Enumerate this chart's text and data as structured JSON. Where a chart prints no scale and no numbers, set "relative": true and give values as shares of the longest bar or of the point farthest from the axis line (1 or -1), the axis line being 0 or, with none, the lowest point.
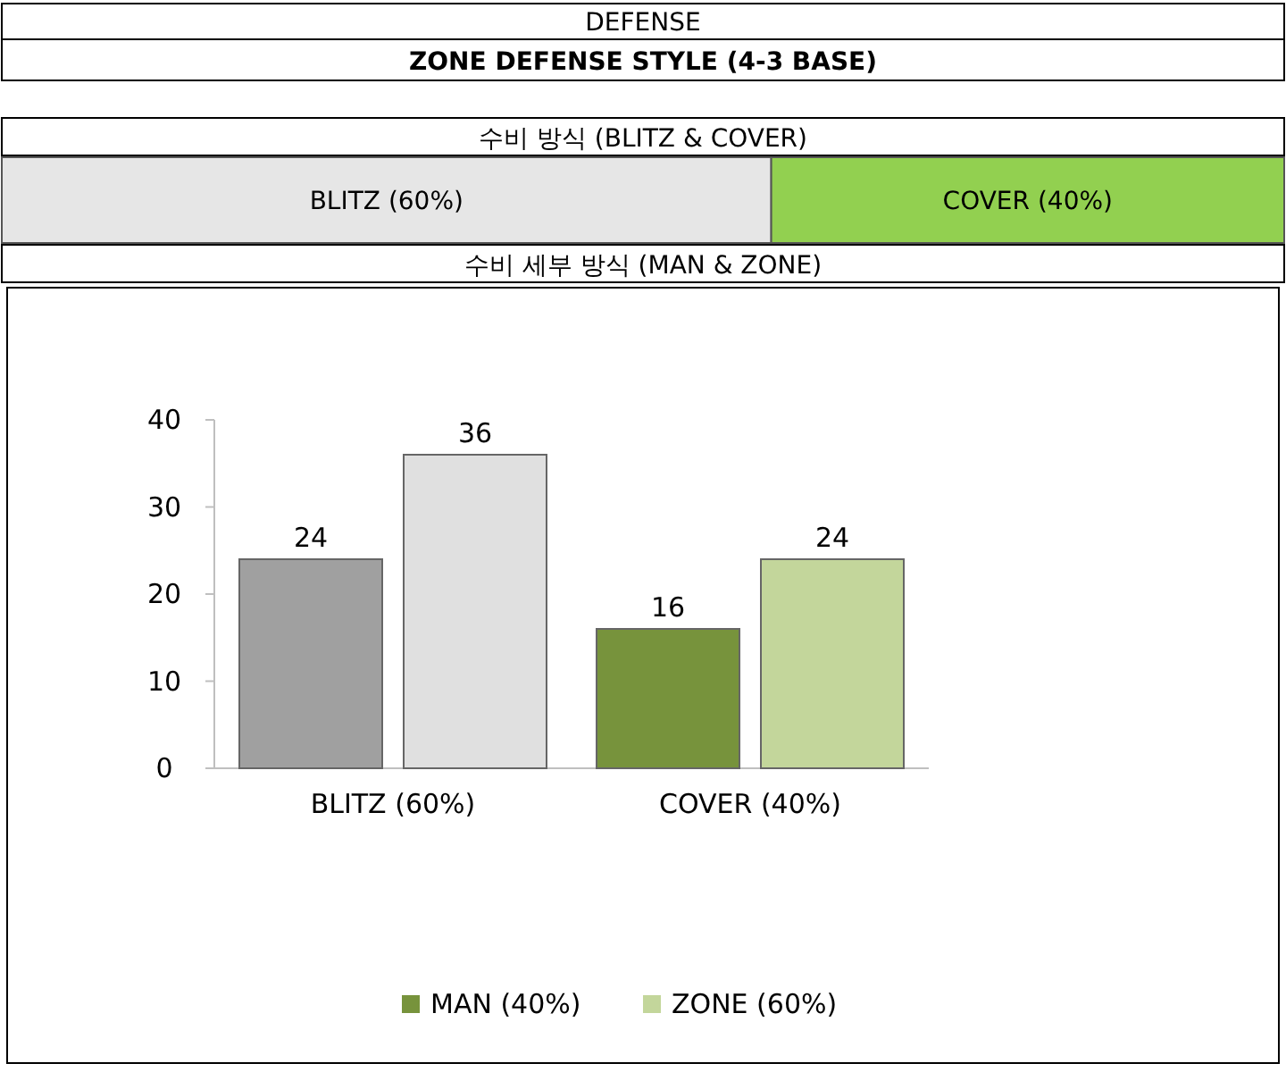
{
  "chart_data": [
    {
      "type": "bar",
      "title": "DEFENSE",
      "subtitle": "ZONE DEFENSE STYLE (4-3 BASE)",
      "annotations": [
        "수비 방식 (BLITZ & COVER)"
      ],
      "categories": [
        null
      ],
      "orientation": "horizontal",
      "stacked": true,
      "relative": true,
      "series": [
        {
          "name": "BLITZ (60%)",
          "color": "#e6e6e6",
          "values": [
            0.6
          ]
        },
        {
          "name": "COVER (40%)",
          "color": "#92d050",
          "values": [
            0.4
          ]
        }
      ]
    },
    {
      "type": "bar",
      "title": "수비 세부 방식 (MAN & ZONE)",
      "categories": [
        "BLITZ (60%)",
        "COVER (40%)"
      ],
      "ylim": [
        0,
        40
      ],
      "yticks": [
        0,
        10,
        20,
        30,
        40
      ],
      "data_labels": true,
      "legend": "bottom",
      "series": [
        {
          "name": "MAN (40%)",
          "color": "#77933c",
          "colors": [
            "#a0a0a0",
            "#77933c"
          ],
          "values": [
            24,
            16
          ]
        },
        {
          "name": "ZONE (60%)",
          "color": "#c3d69b",
          "colors": [
            "#e0e0e0",
            "#c3d69b"
          ],
          "values": [
            36,
            24
          ]
        }
      ]
    }
  ]
}
